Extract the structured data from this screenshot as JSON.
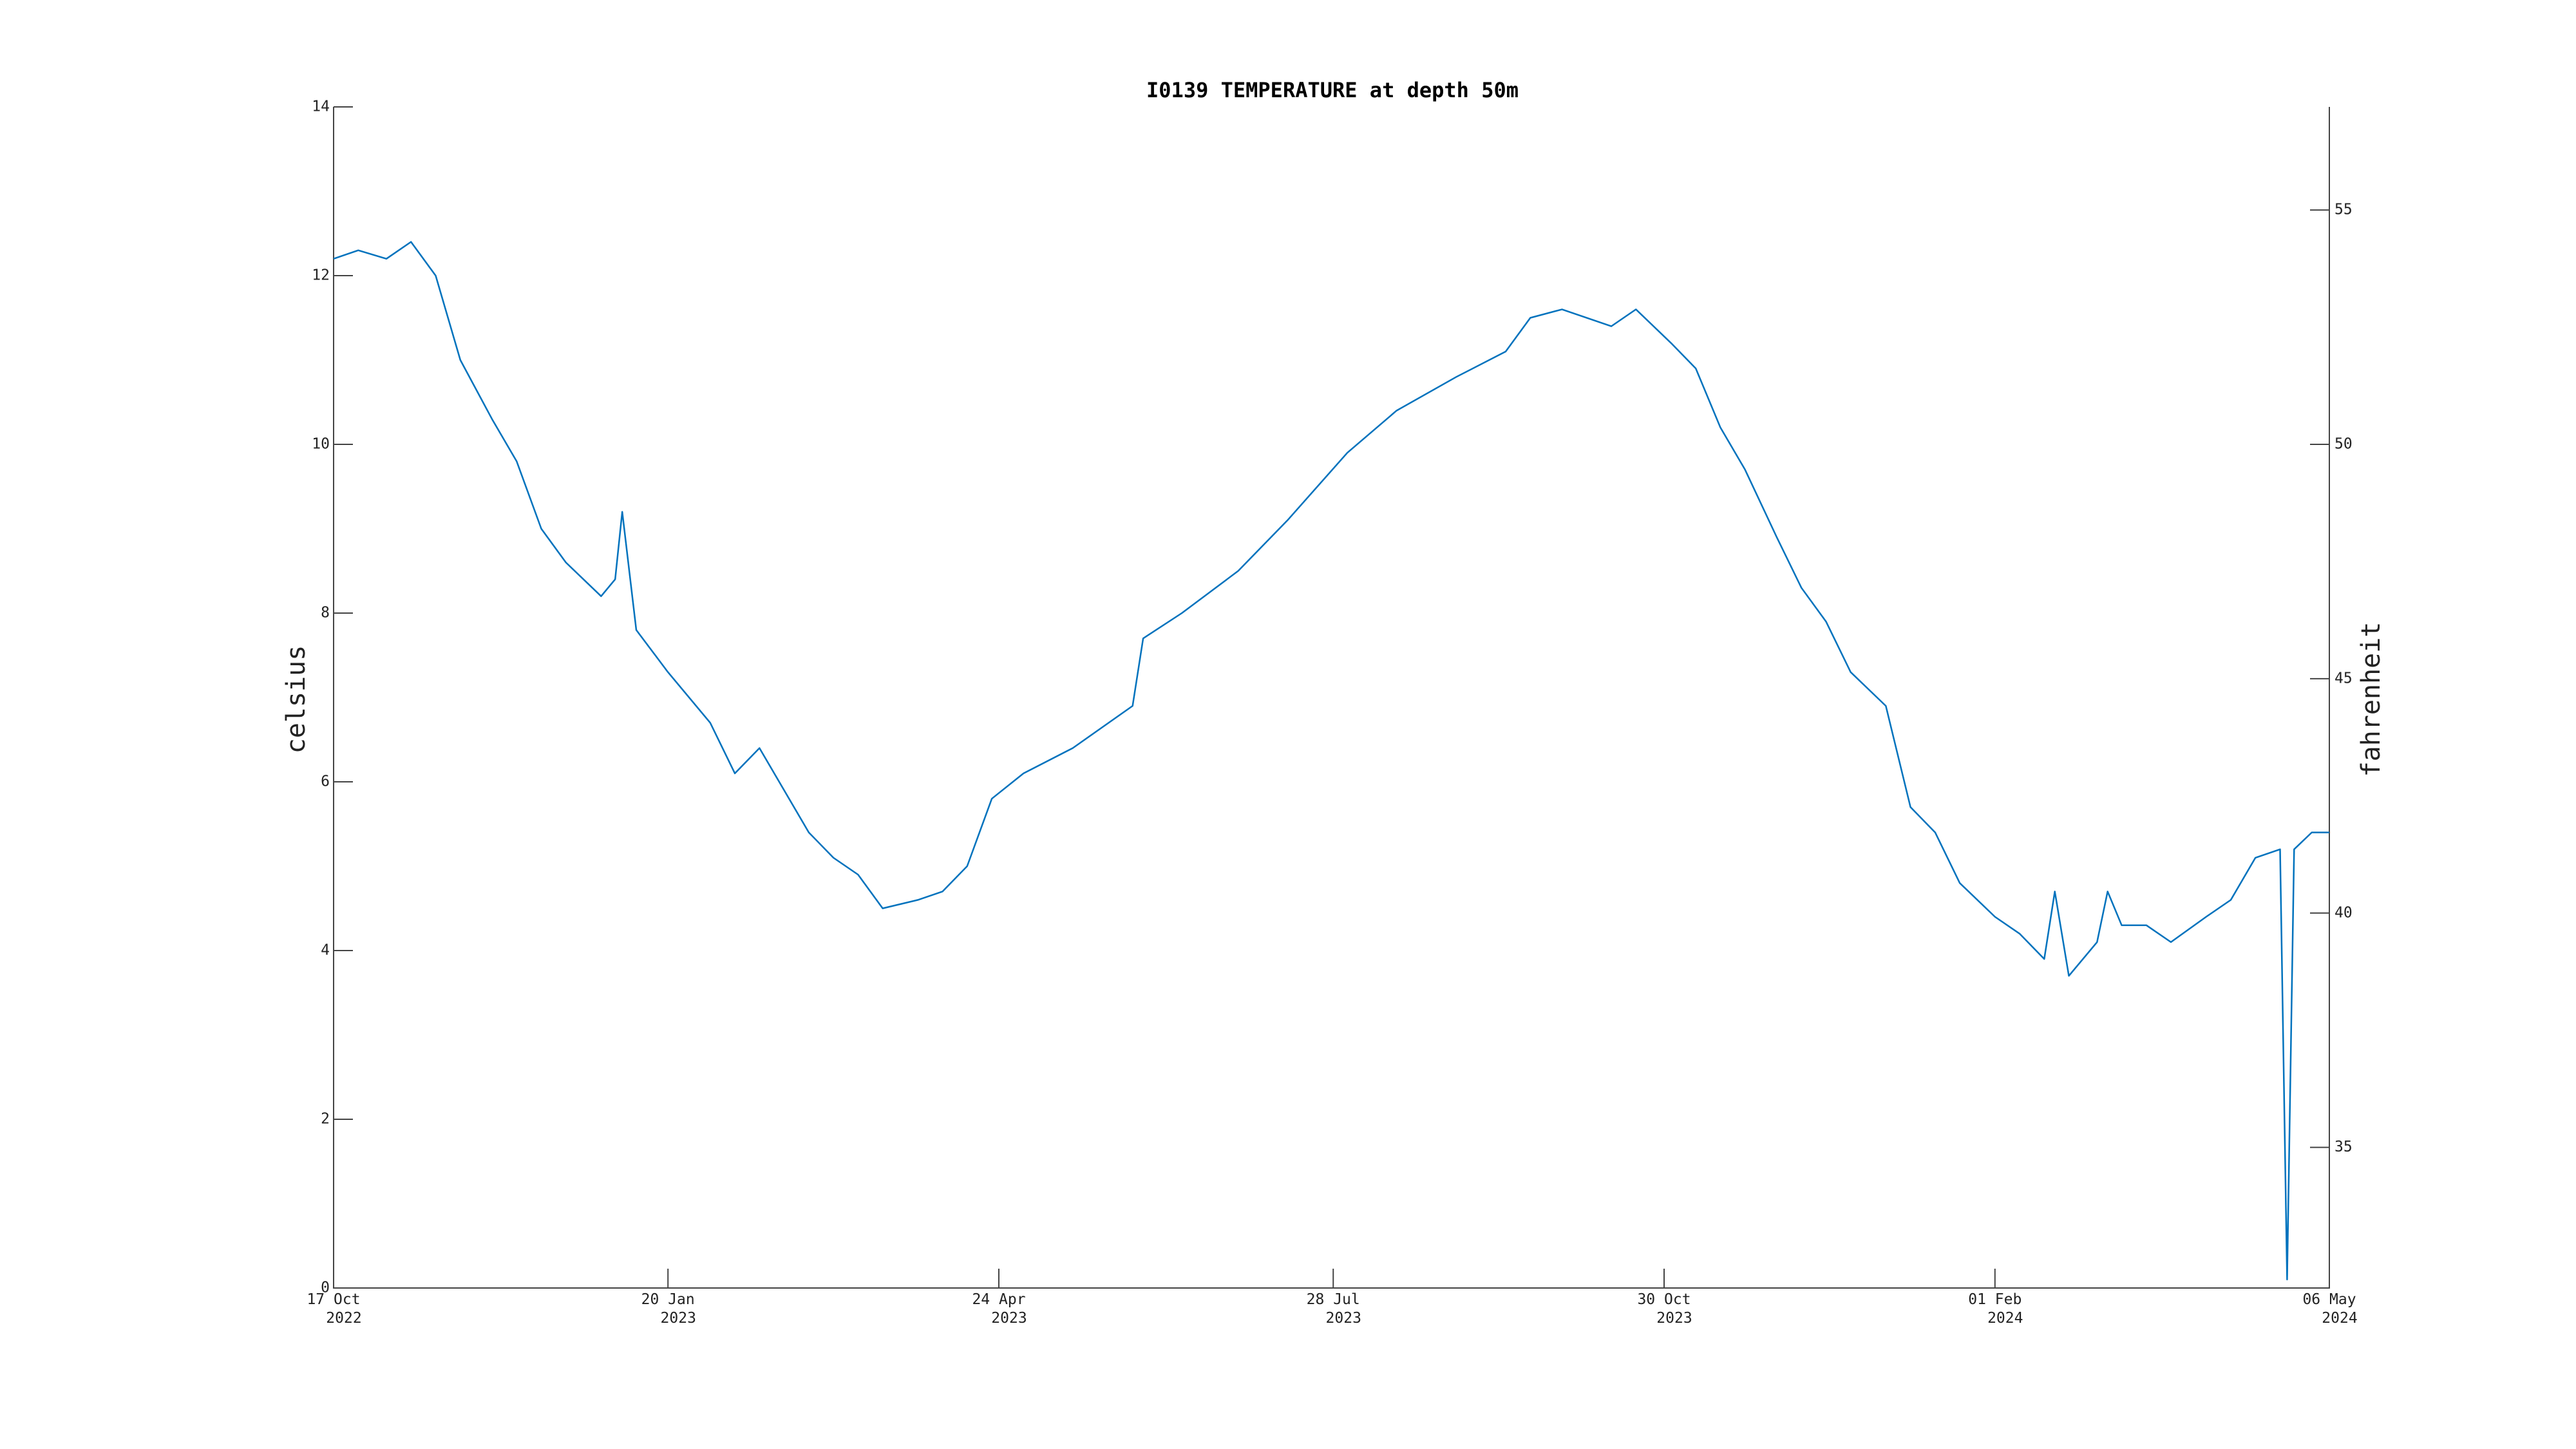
{
  "chart_data": {
    "type": "line",
    "title": "I0139 TEMPERATURE at depth 50m",
    "y_label": "celsius",
    "y2_label": "fahrenheit",
    "color": "#0072bd",
    "x": [
      "2022-10-17",
      "2022-10-24",
      "2022-11-01",
      "2022-11-08",
      "2022-11-15",
      "2022-11-22",
      "2022-12-01",
      "2022-12-08",
      "2022-12-15",
      "2022-12-22",
      "2023-01-01",
      "2023-01-05",
      "2023-01-07",
      "2023-01-11",
      "2023-01-20",
      "2023-02-01",
      "2023-02-08",
      "2023-02-15",
      "2023-02-22",
      "2023-03-01",
      "2023-03-08",
      "2023-03-15",
      "2023-03-22",
      "2023-04-01",
      "2023-04-08",
      "2023-04-15",
      "2023-04-22",
      "2023-05-01",
      "2023-05-15",
      "2023-06-01",
      "2023-06-04",
      "2023-06-15",
      "2023-07-01",
      "2023-07-15",
      "2023-08-01",
      "2023-08-15",
      "2023-09-01",
      "2023-09-15",
      "2023-09-22",
      "2023-10-01",
      "2023-10-15",
      "2023-10-22",
      "2023-11-01",
      "2023-11-08",
      "2023-11-15",
      "2023-11-22",
      "2023-12-01",
      "2023-12-08",
      "2023-12-15",
      "2023-12-22",
      "2024-01-01",
      "2024-01-08",
      "2024-01-15",
      "2024-01-22",
      "2024-02-01",
      "2024-02-08",
      "2024-02-15",
      "2024-02-18",
      "2024-02-22",
      "2024-03-01",
      "2024-03-04",
      "2024-03-08",
      "2024-03-15",
      "2024-03-22",
      "2024-04-01",
      "2024-04-08",
      "2024-04-15",
      "2024-04-22",
      "2024-04-24",
      "2024-04-26",
      "2024-05-01",
      "2024-05-06"
    ],
    "values": [
      12.2,
      12.3,
      12.2,
      12.4,
      12.0,
      11.0,
      10.3,
      9.8,
      9.0,
      8.6,
      8.2,
      8.4,
      9.2,
      7.8,
      7.3,
      6.7,
      6.1,
      6.4,
      5.9,
      5.4,
      5.1,
      4.9,
      4.5,
      4.6,
      4.7,
      5.0,
      5.8,
      6.1,
      6.4,
      6.9,
      7.7,
      8.0,
      8.5,
      9.1,
      9.9,
      10.4,
      10.8,
      11.1,
      11.5,
      11.6,
      11.4,
      11.6,
      11.2,
      10.9,
      10.2,
      9.7,
      8.9,
      8.3,
      7.9,
      7.3,
      6.9,
      5.7,
      5.4,
      4.8,
      4.4,
      4.2,
      3.9,
      4.7,
      3.7,
      4.1,
      4.7,
      4.3,
      4.3,
      4.1,
      4.4,
      4.6,
      5.1,
      5.2,
      0.1,
      5.2,
      5.4,
      5.4
    ],
    "xlim": [
      "2022-10-17",
      "2024-05-06"
    ],
    "xticks": [
      {
        "value": "2022-10-17",
        "label": "17 Oct\n2022"
      },
      {
        "value": "2023-01-20",
        "label": "20 Jan\n2023"
      },
      {
        "value": "2023-04-24",
        "label": "24 Apr\n2023"
      },
      {
        "value": "2023-07-28",
        "label": "28 Jul\n2023"
      },
      {
        "value": "2023-10-30",
        "label": "30 Oct\n2023"
      },
      {
        "value": "2024-02-01",
        "label": "01 Feb\n2024"
      },
      {
        "value": "2024-05-06",
        "label": "06 May\n2024"
      }
    ],
    "ylim": [
      0,
      14
    ],
    "yticks": [
      0,
      2,
      4,
      6,
      8,
      10,
      12,
      14
    ],
    "y2lim": [
      32,
      57.2
    ],
    "y2ticks": [
      35,
      40,
      45,
      50,
      55
    ]
  }
}
